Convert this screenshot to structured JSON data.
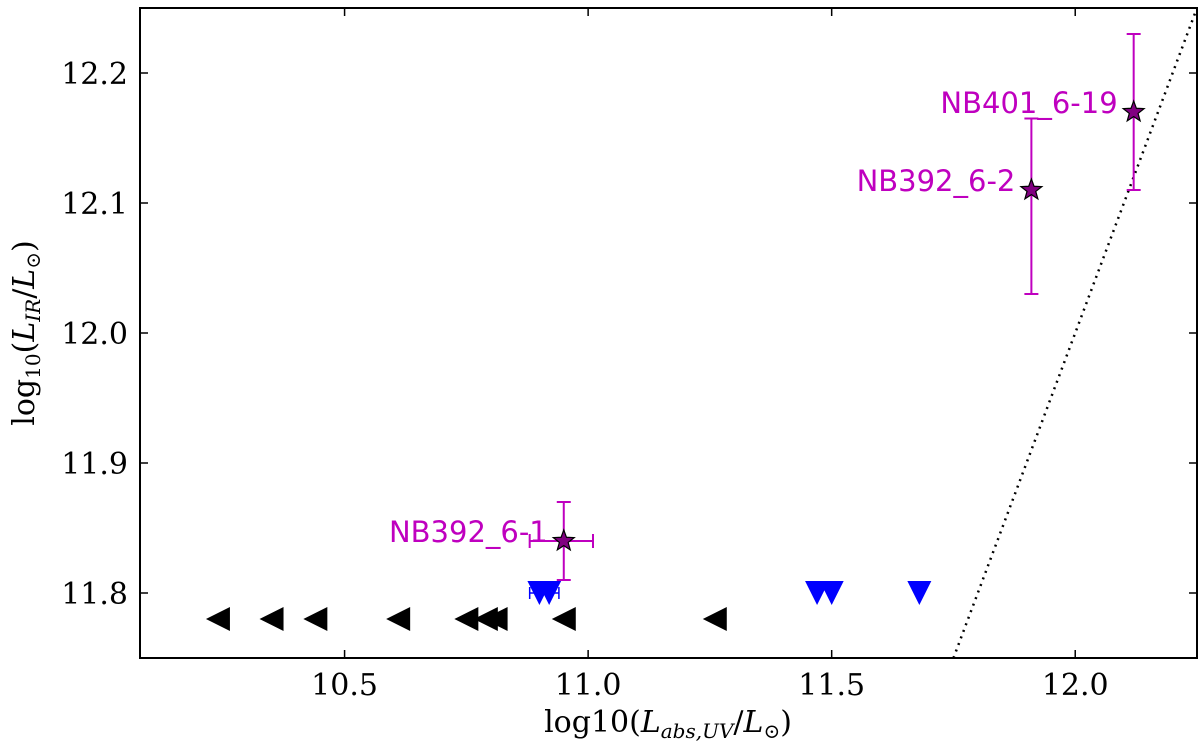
{
  "chart_data": {
    "type": "scatter",
    "xlabel": "log10(L_abs,UV/L⊙)",
    "ylabel": "log10(L_IR/L⊙)",
    "xlim": [
      10.08,
      12.25
    ],
    "ylim": [
      11.75,
      12.25
    ],
    "grid": false,
    "x_ticks": [
      {
        "value": 10.5,
        "label": "10.5"
      },
      {
        "value": 11.0,
        "label": "11.0"
      },
      {
        "value": 11.5,
        "label": "11.5"
      },
      {
        "value": 12.0,
        "label": "12.0"
      }
    ],
    "y_ticks": [
      {
        "value": 11.8,
        "label": "11.8"
      },
      {
        "value": 11.9,
        "label": "11.9"
      },
      {
        "value": 12.0,
        "label": "12.0"
      },
      {
        "value": 12.1,
        "label": "12.1"
      },
      {
        "value": 12.2,
        "label": "12.2"
      }
    ],
    "series": [
      {
        "marker": "star",
        "color": "#bf00bf",
        "points": [
          {
            "x": 10.95,
            "y": 11.84,
            "yerr_low": 11.81,
            "yerr_high": 11.87,
            "xerr_low": 10.88,
            "xerr_high": 11.01,
            "label": "NB392_6-1"
          },
          {
            "x": 11.91,
            "y": 12.11,
            "yerr_low": 12.03,
            "yerr_high": 12.165,
            "label": "NB392_6-2"
          },
          {
            "x": 12.12,
            "y": 12.17,
            "yerr_low": 12.11,
            "yerr_high": 12.23,
            "label": "NB401_6-19"
          }
        ]
      },
      {
        "marker": "triangle-down",
        "color": "#0000ff",
        "points": [
          {
            "x": 10.9,
            "y": 11.8,
            "xerr_low": 10.88,
            "xerr_high": 10.94
          },
          {
            "x": 10.92,
            "y": 11.8
          },
          {
            "x": 11.47,
            "y": 11.8
          },
          {
            "x": 11.5,
            "y": 11.8
          },
          {
            "x": 11.68,
            "y": 11.8
          }
        ]
      },
      {
        "marker": "triangle-left",
        "color": "#000000",
        "points": [
          {
            "x": 10.24,
            "y": 11.78
          },
          {
            "x": 10.35,
            "y": 11.78
          },
          {
            "x": 10.44,
            "y": 11.78
          },
          {
            "x": 10.61,
            "y": 11.78
          },
          {
            "x": 10.75,
            "y": 11.78
          },
          {
            "x": 10.79,
            "y": 11.78
          },
          {
            "x": 10.81,
            "y": 11.78
          },
          {
            "x": 10.95,
            "y": 11.78
          },
          {
            "x": 11.26,
            "y": 11.78
          }
        ]
      }
    ],
    "reference_line": {
      "style": "dotted",
      "color": "#000000",
      "points": [
        [
          11.75,
          11.75
        ],
        [
          12.25,
          12.25
        ]
      ]
    }
  }
}
